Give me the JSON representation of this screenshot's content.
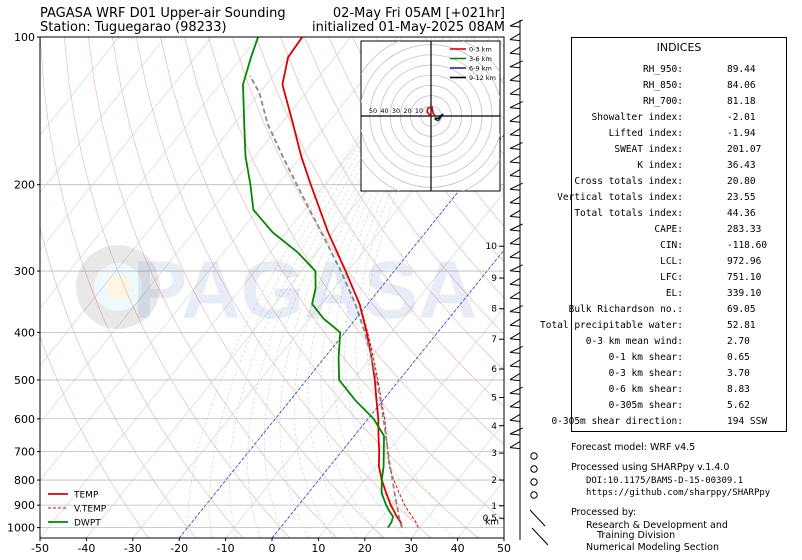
{
  "header": {
    "title_left": "PAGASA WRF D01 Upper-air Sounding",
    "station": "Station: Tuguegarao (98233)",
    "valid_time": "02-May Fri 05AM [+021hr]",
    "init_time": "initialized 01-May-2025 08AM"
  },
  "chart_data": {
    "type": "skew-t",
    "xlim": [
      -50,
      50
    ],
    "ylim_hpa": [
      1050,
      100
    ],
    "pressure_ticks": [
      100,
      200,
      300,
      400,
      500,
      600,
      700,
      800,
      900,
      1000
    ],
    "temp_ticks": [
      -50,
      -40,
      -30,
      -20,
      -10,
      0,
      10,
      20,
      30,
      40,
      50
    ],
    "height_ticks_km": [
      "0.5",
      "1",
      "2",
      "3",
      "4",
      "5",
      "6",
      "7",
      "8",
      "9",
      "10"
    ],
    "height_unit": "km",
    "legend": {
      "placement": "lower-left",
      "entries": [
        "TEMP",
        "V.TEMP",
        "DWPT"
      ]
    },
    "colors": {
      "temp": "#dd0000",
      "vtemp": "#dd0000",
      "dwpt": "#008800",
      "parcel": "#888888"
    },
    "series": [
      {
        "name": "TEMP",
        "points": [
          [
            1000,
            26.2
          ],
          [
            975,
            25
          ],
          [
            950,
            23.2
          ],
          [
            925,
            21.6
          ],
          [
            900,
            19.9
          ],
          [
            850,
            16.8
          ],
          [
            800,
            13.6
          ],
          [
            750,
            10.6
          ],
          [
            700,
            8.1
          ],
          [
            650,
            5.2
          ],
          [
            600,
            2.2
          ],
          [
            550,
            -1.4
          ],
          [
            500,
            -5.3
          ],
          [
            450,
            -9.9
          ],
          [
            400,
            -15.3
          ],
          [
            350,
            -21.8
          ],
          [
            300,
            -30.5
          ],
          [
            250,
            -41
          ],
          [
            200,
            -53
          ],
          [
            175,
            -60
          ],
          [
            150,
            -67.5
          ],
          [
            125,
            -76.5
          ],
          [
            110,
            -80
          ],
          [
            100,
            -80.5
          ]
        ]
      },
      {
        "name": "V.TEMP",
        "points": [
          [
            1000,
            29.7
          ],
          [
            975,
            28.3
          ],
          [
            950,
            26.5
          ],
          [
            925,
            24.7
          ],
          [
            900,
            22.9
          ],
          [
            850,
            19.6
          ],
          [
            800,
            16.2
          ],
          [
            750,
            12.8
          ],
          [
            700,
            9.9
          ],
          [
            650,
            6.9
          ],
          [
            600,
            3.6
          ],
          [
            550,
            -0.4
          ],
          [
            500,
            -4.6
          ],
          [
            450,
            -9.5
          ],
          [
            400,
            -15.1
          ],
          [
            350,
            -21.7
          ],
          [
            300,
            -30.5
          ]
        ]
      },
      {
        "name": "DWPT",
        "points": [
          [
            1000,
            23.2
          ],
          [
            975,
            23
          ],
          [
            950,
            22.4
          ],
          [
            925,
            20.6
          ],
          [
            900,
            18.9
          ],
          [
            850,
            15.8
          ],
          [
            800,
            13.6
          ],
          [
            750,
            11.6
          ],
          [
            700,
            9.1
          ],
          [
            650,
            6.4
          ],
          [
            600,
            1.2
          ],
          [
            550,
            -6
          ],
          [
            500,
            -13
          ],
          [
            450,
            -17
          ],
          [
            400,
            -21
          ],
          [
            375,
            -27
          ],
          [
            350,
            -32
          ],
          [
            325,
            -34
          ],
          [
            300,
            -37
          ],
          [
            275,
            -44
          ],
          [
            250,
            -53
          ],
          [
            225,
            -61
          ],
          [
            200,
            -66
          ],
          [
            175,
            -72
          ],
          [
            150,
            -78
          ],
          [
            125,
            -85
          ],
          [
            110,
            -88
          ],
          [
            100,
            -90
          ]
        ]
      },
      {
        "name": "parcel",
        "points": [
          [
            1000,
            26.2
          ],
          [
            972,
            24.7
          ],
          [
            900,
            21.2
          ],
          [
            850,
            18.6
          ],
          [
            800,
            15.9
          ],
          [
            750,
            13
          ],
          [
            700,
            10
          ],
          [
            650,
            6.8
          ],
          [
            600,
            3.3
          ],
          [
            550,
            -0.5
          ],
          [
            500,
            -4.9
          ],
          [
            450,
            -9.9
          ],
          [
            400,
            -15.7
          ],
          [
            350,
            -22.7
          ],
          [
            300,
            -31.5
          ],
          [
            250,
            -42.5
          ],
          [
            200,
            -56
          ],
          [
            175,
            -64
          ],
          [
            150,
            -73
          ],
          [
            130,
            -80
          ],
          [
            120,
            -85
          ]
        ]
      }
    ]
  },
  "hodograph": {
    "legend": [
      "0-3 km",
      "3-6 km",
      "6-9 km",
      "9-12 km"
    ],
    "ring_labels": [
      "50",
      "40",
      "30",
      "20",
      "10"
    ]
  },
  "indices": {
    "title": "INDICES",
    "rows": [
      {
        "label": "RH_950:",
        "value": "89.44"
      },
      {
        "label": "RH_850:",
        "value": "84.06"
      },
      {
        "label": "RH_700:",
        "value": "81.18"
      },
      {
        "label": "Showalter index:",
        "value": "-2.01"
      },
      {
        "label": "Lifted index:",
        "value": "-1.94"
      },
      {
        "label": "SWEAT index:",
        "value": "201.07"
      },
      {
        "label": "K index:",
        "value": "36.43"
      },
      {
        "label": "Cross totals index:",
        "value": "20.80"
      },
      {
        "label": "Vertical totals index:",
        "value": "23.55"
      },
      {
        "label": "Total totals index:",
        "value": "44.36"
      },
      {
        "label": "CAPE:",
        "value": "283.33"
      },
      {
        "label": "CIN:",
        "value": "-118.60"
      },
      {
        "label": "LCL:",
        "value": "972.96"
      },
      {
        "label": "LFC:",
        "value": "751.10"
      },
      {
        "label": "EL:",
        "value": "339.10"
      },
      {
        "label": "Bulk Richardson no.:",
        "value": "69.05"
      },
      {
        "label": "Total precipitable water:",
        "value": "52.81"
      },
      {
        "label": "0-3 km mean wind:",
        "value": "2.70"
      },
      {
        "label": "0-1 km shear:",
        "value": "0.65"
      },
      {
        "label": "0-3 km shear:",
        "value": "3.70"
      },
      {
        "label": "0-6 km shear:",
        "value": "8.83"
      },
      {
        "label": "0-305m shear:",
        "value": "5.62"
      },
      {
        "label": "0-305m shear direction:",
        "value": "194 SSW"
      }
    ]
  },
  "footer": {
    "forecast_model": "Forecast model: WRF v4.5",
    "processed_using": "Processed using SHARPpy v.1.4.0",
    "doi": "DOI:10.1175/BAMS-D-15-00309.1",
    "url": "https://github.com/sharppy/SHARPpy",
    "processed_by": "Processed by:",
    "org_line1": "Research & Development and",
    "org_line2": "Training Division",
    "org_line3": "Numerical Modeling Section"
  },
  "watermark": "PAGASA"
}
